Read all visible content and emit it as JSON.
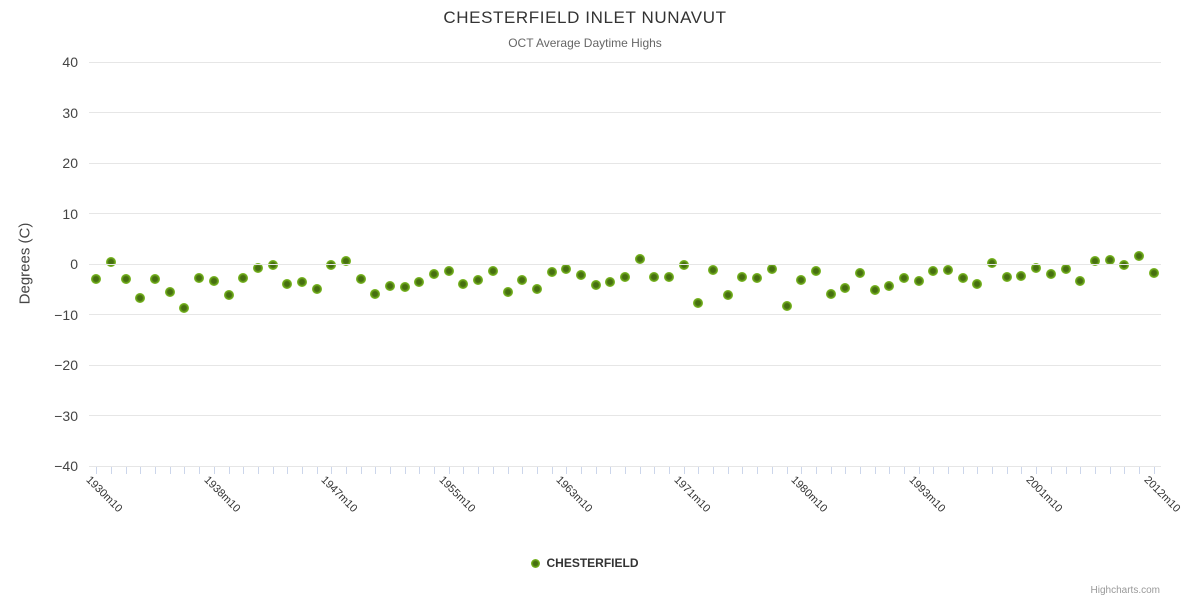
{
  "header": {
    "title": "CHESTERFIELD INLET NUNAVUT",
    "subtitle": "OCT Average Daytime Highs"
  },
  "legend": {
    "label": "CHESTERFIELD"
  },
  "credits": {
    "label": "Highcharts.com"
  },
  "colors": {
    "marker_outer": "#76b41f",
    "marker_inner": "#466f10",
    "grid_line": "#e6e6e6",
    "axis_line": "#ccd6eb",
    "title_text": "#333333",
    "subtitle_text": "#666666",
    "credits_text": "#999999"
  },
  "chart_data": {
    "type": "scatter",
    "title": "CHESTERFIELD INLET NUNAVUT",
    "subtitle": "OCT Average Daytime Highs",
    "xlabel": "",
    "ylabel": "Degrees (C)",
    "ylim": [
      -40,
      40
    ],
    "y_ticks": [
      40,
      30,
      20,
      10,
      0,
      -10,
      -20,
      -30,
      -40
    ],
    "grid": "on",
    "legend_position": "bottom-center",
    "x_tick_interval": 8,
    "x_tick_labels": [
      "1930m10",
      "1938m10",
      "1947m10",
      "1955m10",
      "1963m10",
      "1971m10",
      "1980m10",
      "1993m10",
      "2001m10",
      "2012m10"
    ],
    "series": [
      {
        "name": "CHESTERFIELD",
        "color": "#76b41f",
        "values": [
          -3.0,
          0.4,
          -2.9,
          -6.8,
          -3.0,
          -5.5,
          -8.7,
          -2.8,
          -3.4,
          -6.2,
          -2.8,
          -0.7,
          -0.2,
          -4.0,
          -3.5,
          -5.0,
          -0.2,
          0.5,
          -3.0,
          -6.0,
          -4.4,
          -4.5,
          -3.5,
          -2.0,
          -1.4,
          -4.0,
          -3.2,
          -1.3,
          -5.5,
          -3.2,
          -5.0,
          -1.5,
          -1.0,
          -2.2,
          -4.2,
          -3.5,
          -2.5,
          1.0,
          -2.5,
          -2.6,
          -0.1,
          -7.8,
          -1.2,
          -6.2,
          -2.5,
          -2.8,
          -0.9,
          -8.3,
          -3.2,
          -1.4,
          -6.0,
          -4.7,
          -1.8,
          -5.2,
          -4.4,
          -2.7,
          -3.4,
          -1.4,
          -1.2,
          -2.7,
          -4.0,
          0.2,
          -2.5,
          -2.4,
          -0.7,
          -2.0,
          -0.9,
          -3.4,
          0.6,
          0.8,
          -0.2,
          1.5,
          -1.7
        ]
      }
    ]
  }
}
